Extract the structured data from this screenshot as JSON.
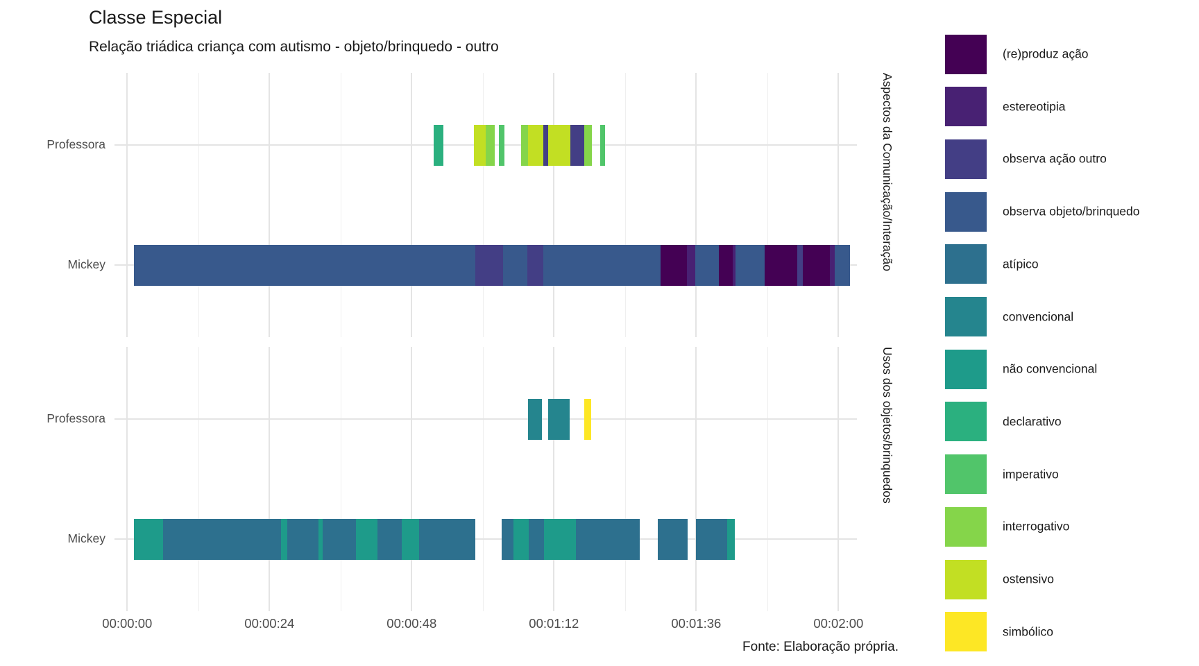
{
  "title": "Classe Especial",
  "subtitle": "Relação triádica criança com autismo - objeto/brinquedo - outro",
  "caption": "Fonte: Elaboração própria.",
  "chart_data": {
    "type": "bar",
    "subtype": "segment-timeline (Gantt-style, faceted, discrete y)",
    "grid": "major and minor vertical gridlines, major horizontal gridlines, white background (theme_minimal)",
    "legend_position": "right",
    "x_axis": {
      "unit": "seconds (displayed as hh:mm:ss)",
      "range": [
        0,
        123
      ],
      "tick_seconds": [
        0,
        24,
        48,
        72,
        96,
        120
      ],
      "tick_labels": [
        "00:00:00",
        "00:00:24",
        "00:00:48",
        "00:01:12",
        "00:01:36",
        "00:02:00"
      ],
      "minor_tick_seconds": [
        12,
        36,
        60,
        84,
        108
      ]
    },
    "legend": [
      {
        "label": "(re)produz ação",
        "color": "#440154"
      },
      {
        "label": "estereotipia",
        "color": "#482173"
      },
      {
        "label": "observa ação outro",
        "color": "#433E85"
      },
      {
        "label": "observa objeto/brinquedo",
        "color": "#38598C"
      },
      {
        "label": "atípico",
        "color": "#2D708E"
      },
      {
        "label": "convencional",
        "color": "#25858E"
      },
      {
        "label": "não convencional",
        "color": "#1E9B8A"
      },
      {
        "label": "declarativo",
        "color": "#2BB07F"
      },
      {
        "label": "imperativo",
        "color": "#51C56A"
      },
      {
        "label": "interrogativo",
        "color": "#85D54A"
      },
      {
        "label": "ostensivo",
        "color": "#C2DF23"
      },
      {
        "label": "simbólico",
        "color": "#FDE725"
      }
    ],
    "facets": [
      {
        "label": "Aspectos da Comunicação/Interação",
        "rows": [
          {
            "label": "Professora",
            "segments": [
              {
                "start": 51.7,
                "end": 53.3,
                "category": "declarativo"
              },
              {
                "start": 58.5,
                "end": 60.5,
                "category": "ostensivo"
              },
              {
                "start": 60.5,
                "end": 62.0,
                "category": "interrogativo"
              },
              {
                "start": 62.7,
                "end": 63.6,
                "category": "imperativo"
              },
              {
                "start": 66.5,
                "end": 67.6,
                "category": "interrogativo"
              },
              {
                "start": 67.6,
                "end": 70.2,
                "category": "ostensivo"
              },
              {
                "start": 70.2,
                "end": 71.0,
                "category": "observa ação outro"
              },
              {
                "start": 71.0,
                "end": 74.8,
                "category": "ostensivo"
              },
              {
                "start": 74.8,
                "end": 77.1,
                "category": "observa ação outro"
              },
              {
                "start": 77.1,
                "end": 78.4,
                "category": "interrogativo"
              },
              {
                "start": 79.8,
                "end": 80.6,
                "category": "imperativo"
              }
            ]
          },
          {
            "label": "Mickey",
            "segments": [
              {
                "start": 1.1,
                "end": 58.7,
                "category": "observa objeto/brinquedo"
              },
              {
                "start": 58.7,
                "end": 63.4,
                "category": "observa ação outro"
              },
              {
                "start": 63.4,
                "end": 67.5,
                "category": "observa objeto/brinquedo"
              },
              {
                "start": 67.5,
                "end": 70.2,
                "category": "observa ação outro"
              },
              {
                "start": 70.2,
                "end": 90.0,
                "category": "observa objeto/brinquedo"
              },
              {
                "start": 90.0,
                "end": 94.4,
                "category": "(re)produz ação"
              },
              {
                "start": 94.4,
                "end": 95.8,
                "category": "estereotipia"
              },
              {
                "start": 95.8,
                "end": 99.8,
                "category": "observa objeto/brinquedo"
              },
              {
                "start": 99.8,
                "end": 102.2,
                "category": "(re)produz ação"
              },
              {
                "start": 102.2,
                "end": 102.6,
                "category": "estereotipia"
              },
              {
                "start": 102.6,
                "end": 107.6,
                "category": "observa objeto/brinquedo"
              },
              {
                "start": 107.6,
                "end": 113.0,
                "category": "(re)produz ação"
              },
              {
                "start": 113.0,
                "end": 114.0,
                "category": "observa ação outro"
              },
              {
                "start": 114.0,
                "end": 118.6,
                "category": "(re)produz ação"
              },
              {
                "start": 118.6,
                "end": 119.4,
                "category": "estereotipia"
              },
              {
                "start": 119.4,
                "end": 122.0,
                "category": "observa objeto/brinquedo"
              }
            ]
          }
        ]
      },
      {
        "label": "Usos dos objetos/brinquedos",
        "rows": [
          {
            "label": "Professora",
            "segments": [
              {
                "start": 67.6,
                "end": 70.0,
                "category": "convencional"
              },
              {
                "start": 71.0,
                "end": 74.7,
                "category": "convencional"
              },
              {
                "start": 77.1,
                "end": 78.3,
                "category": "simbólico"
              }
            ]
          },
          {
            "label": "Mickey",
            "segments": [
              {
                "start": 1.1,
                "end": 6.0,
                "category": "não convencional"
              },
              {
                "start": 6.0,
                "end": 25.9,
                "category": "atípico"
              },
              {
                "start": 25.9,
                "end": 27.0,
                "category": "não convencional"
              },
              {
                "start": 27.0,
                "end": 32.3,
                "category": "atípico"
              },
              {
                "start": 32.3,
                "end": 33.0,
                "category": "não convencional"
              },
              {
                "start": 33.0,
                "end": 38.6,
                "category": "atípico"
              },
              {
                "start": 38.6,
                "end": 42.2,
                "category": "não convencional"
              },
              {
                "start": 42.2,
                "end": 46.3,
                "category": "atípico"
              },
              {
                "start": 46.3,
                "end": 49.2,
                "category": "não convencional"
              },
              {
                "start": 49.2,
                "end": 58.7,
                "category": "atípico"
              },
              {
                "start": 63.2,
                "end": 65.2,
                "category": "atípico"
              },
              {
                "start": 65.2,
                "end": 67.7,
                "category": "não convencional"
              },
              {
                "start": 67.7,
                "end": 70.3,
                "category": "atípico"
              },
              {
                "start": 70.3,
                "end": 75.7,
                "category": "não convencional"
              },
              {
                "start": 75.7,
                "end": 86.5,
                "category": "atípico"
              },
              {
                "start": 89.5,
                "end": 94.6,
                "category": "atípico"
              },
              {
                "start": 96.0,
                "end": 101.2,
                "category": "atípico"
              },
              {
                "start": 101.2,
                "end": 102.5,
                "category": "não convencional"
              }
            ]
          }
        ]
      }
    ]
  }
}
